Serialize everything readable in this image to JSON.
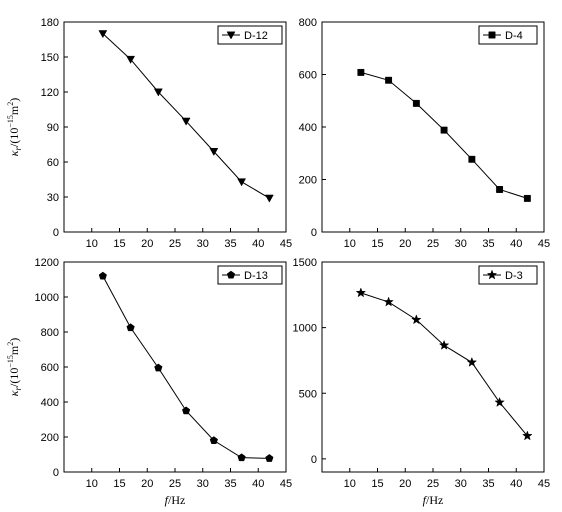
{
  "chart_data": [
    {
      "type": "line",
      "series": [
        {
          "name": "D-12",
          "marker": "triangle-down",
          "x": [
            12,
            17,
            22,
            27,
            32,
            37,
            42
          ],
          "y": [
            170,
            148,
            120,
            95,
            69,
            43,
            29
          ]
        }
      ],
      "xlim": [
        5,
        45
      ],
      "ylim": [
        0,
        180
      ],
      "xticks": [
        "10",
        "15",
        "20",
        "25",
        "30",
        "35",
        "40",
        "45"
      ],
      "yticks": [
        "0",
        "30",
        "60",
        "90",
        "120",
        "150",
        "180"
      ],
      "ylabel": {
        "main": "κ",
        "sub": "r",
        "mid": "/(10",
        "sup": "−15",
        "end": "m",
        "sup2": "2",
        "close": ")"
      },
      "xlabel": null,
      "legend_position": "top-right"
    },
    {
      "type": "line",
      "series": [
        {
          "name": "D-4",
          "marker": "square",
          "x": [
            12,
            17,
            22,
            27,
            32,
            37,
            42
          ],
          "y": [
            608,
            578,
            490,
            388,
            277,
            162,
            128
          ]
        }
      ],
      "xlim": [
        5,
        45
      ],
      "ylim": [
        0,
        800
      ],
      "xticks": [
        "10",
        "15",
        "20",
        "25",
        "30",
        "35",
        "40",
        "45"
      ],
      "yticks": [
        "0",
        "200",
        "400",
        "600",
        "800"
      ],
      "ylabel": null,
      "xlabel": null,
      "legend_position": "top-right"
    },
    {
      "type": "line",
      "series": [
        {
          "name": "D-13",
          "marker": "pentagon",
          "x": [
            12,
            17,
            22,
            27,
            32,
            37,
            42
          ],
          "y": [
            1120,
            825,
            595,
            350,
            180,
            82,
            78
          ]
        }
      ],
      "xlim": [
        5,
        45
      ],
      "ylim": [
        0,
        1200
      ],
      "xticks": [
        "10",
        "15",
        "20",
        "25",
        "30",
        "35",
        "40",
        "45"
      ],
      "yticks": [
        "0",
        "200",
        "400",
        "600",
        "800",
        "1000",
        "1200"
      ],
      "ylabel": {
        "main": "κ",
        "sub": "r",
        "mid": "/(10",
        "sup": "−15",
        "end": "m",
        "sup2": "2",
        "close": ")"
      },
      "xlabel": {
        "main": "f",
        "rest": "/Hz"
      },
      "legend_position": "top-right"
    },
    {
      "type": "line",
      "series": [
        {
          "name": "D-3",
          "marker": "star",
          "x": [
            12,
            17,
            22,
            27,
            32,
            37,
            42
          ],
          "y": [
            1265,
            1195,
            1060,
            865,
            735,
            430,
            175
          ]
        }
      ],
      "xlim": [
        5,
        45
      ],
      "ylim": [
        -100,
        1500
      ],
      "xticks": [
        "10",
        "15",
        "20",
        "25",
        "30",
        "35",
        "40",
        "45"
      ],
      "yticks": [
        "0",
        "500",
        "1000",
        "1500"
      ],
      "ylabel": null,
      "xlabel": {
        "main": "f",
        "rest": "/Hz"
      },
      "legend_position": "top-right"
    }
  ]
}
